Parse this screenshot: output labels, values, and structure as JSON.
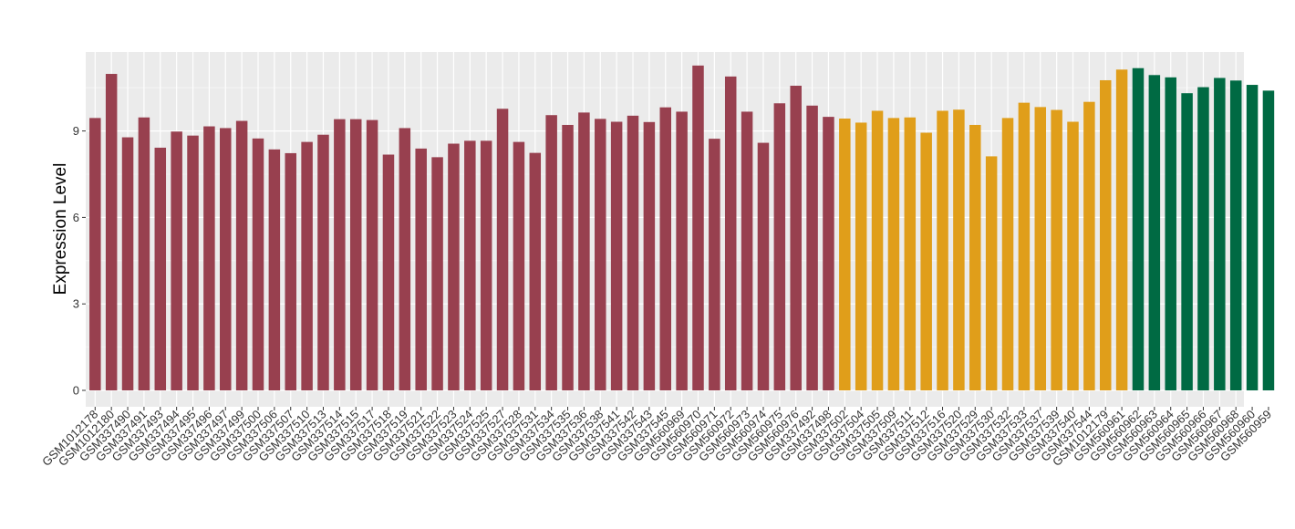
{
  "chart_data": {
    "type": "bar",
    "ylabel": "Expression Level",
    "xlabel": "",
    "ylim": [
      0,
      11.7
    ],
    "yticks": [
      0,
      3,
      6,
      9
    ],
    "grid": true,
    "legend": "none",
    "groups": [
      {
        "color": "#98404F",
        "count": 46
      },
      {
        "color": "#E09E1A",
        "count": 18
      },
      {
        "color": "#006A43",
        "count": 9
      }
    ],
    "categories": [
      "GSM1012178",
      "GSM1012180",
      "GSM337490",
      "GSM337491",
      "GSM337493",
      "GSM337494",
      "GSM337495",
      "GSM337496",
      "GSM337497",
      "GSM337499",
      "GSM337500",
      "GSM337506",
      "GSM337507",
      "GSM337510",
      "GSM337513",
      "GSM337514",
      "GSM337515",
      "GSM337517",
      "GSM337518",
      "GSM337519",
      "GSM337521",
      "GSM337522",
      "GSM337523",
      "GSM337524",
      "GSM337525",
      "GSM337527",
      "GSM337528",
      "GSM337531",
      "GSM337534",
      "GSM337535",
      "GSM337536",
      "GSM337538",
      "GSM337541",
      "GSM337542",
      "GSM337543",
      "GSM337545",
      "GSM560969",
      "GSM560970",
      "GSM560971",
      "GSM560972",
      "GSM560973",
      "GSM560974",
      "GSM560975",
      "GSM560976",
      "GSM337492",
      "GSM337498",
      "GSM337502",
      "GSM337504",
      "GSM337505",
      "GSM337509",
      "GSM337511",
      "GSM337512",
      "GSM337516",
      "GSM337520",
      "GSM337529",
      "GSM337530",
      "GSM337532",
      "GSM337533",
      "GSM337537",
      "GSM337539",
      "GSM337540",
      "GSM337544",
      "GSM1012179",
      "GSM560961",
      "GSM560962",
      "GSM560963",
      "GSM560964",
      "GSM560965",
      "GSM560966",
      "GSM560967",
      "GSM560968",
      "GSM560960",
      "GSM560959"
    ],
    "values": [
      9.45,
      10.98,
      8.78,
      9.47,
      8.42,
      8.98,
      8.84,
      9.16,
      9.1,
      9.35,
      8.74,
      8.36,
      8.23,
      8.62,
      8.87,
      9.41,
      9.41,
      9.38,
      8.18,
      9.1,
      8.39,
      8.09,
      8.56,
      8.66,
      8.66,
      9.77,
      8.62,
      8.24,
      9.55,
      9.21,
      9.64,
      9.42,
      9.32,
      9.53,
      9.31,
      9.82,
      9.67,
      11.27,
      8.73,
      10.89,
      9.67,
      8.59,
      9.96,
      10.57,
      9.88,
      9.49,
      9.43,
      9.29,
      9.7,
      9.45,
      9.47,
      8.94,
      9.7,
      9.74,
      9.21,
      8.12,
      9.45,
      9.98,
      9.83,
      9.73,
      9.32,
      10.01,
      10.76,
      11.13,
      11.18,
      10.94,
      10.86,
      10.31,
      10.52,
      10.84,
      10.75,
      10.6,
      10.4
    ]
  }
}
